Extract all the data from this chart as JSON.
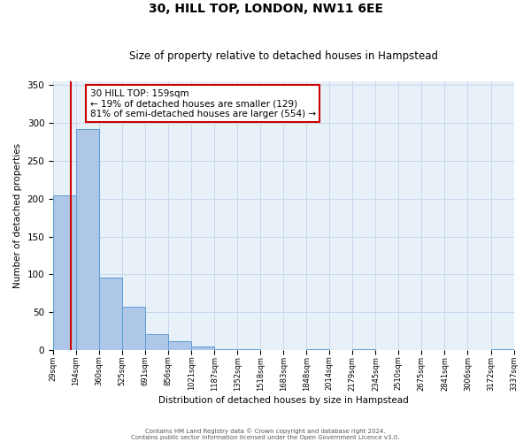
{
  "title": "30, HILL TOP, LONDON, NW11 6EE",
  "subtitle": "Size of property relative to detached houses in Hampstead",
  "xlabel": "Distribution of detached houses by size in Hampstead",
  "ylabel": "Number of detached properties",
  "bar_edges": [
    29,
    194,
    360,
    525,
    691,
    856,
    1021,
    1187,
    1352,
    1518,
    1683,
    1848,
    2014,
    2179,
    2345,
    2510,
    2675,
    2841,
    3006,
    3172,
    3337
  ],
  "bar_heights": [
    204,
    291,
    96,
    58,
    21,
    12,
    5,
    2,
    1,
    0,
    0,
    1,
    0,
    1,
    0,
    0,
    0,
    0,
    0,
    2
  ],
  "bar_color": "#aec6e8",
  "bar_edge_color": "#5b9bd5",
  "property_line_x": 159,
  "property_line_color": "#cc0000",
  "annotation_line1": "30 HILL TOP: 159sqm",
  "annotation_line2": "← 19% of detached houses are smaller (129)",
  "annotation_line3": "81% of semi-detached houses are larger (554) →",
  "annotation_box_color": "#ffffff",
  "annotation_border_color": "#cc0000",
  "ylim": [
    0,
    355
  ],
  "yticks": [
    0,
    50,
    100,
    150,
    200,
    250,
    300,
    350
  ],
  "tick_labels": [
    "29sqm",
    "194sqm",
    "360sqm",
    "525sqm",
    "691sqm",
    "856sqm",
    "1021sqm",
    "1187sqm",
    "1352sqm",
    "1518sqm",
    "1683sqm",
    "1848sqm",
    "2014sqm",
    "2179sqm",
    "2345sqm",
    "2510sqm",
    "2675sqm",
    "2841sqm",
    "3006sqm",
    "3172sqm",
    "3337sqm"
  ],
  "footer1": "Contains HM Land Registry data © Crown copyright and database right 2024.",
  "footer2": "Contains public sector information licensed under the Open Government Licence v3.0.",
  "bg_color": "#ffffff",
  "grid_color": "#c8d8ec",
  "plot_bg_color": "#e8f0f8"
}
